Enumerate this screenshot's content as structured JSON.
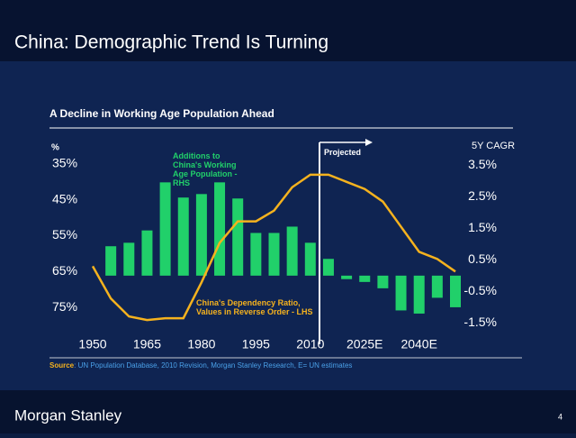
{
  "header": {
    "title": "China: Demographic Trend Is Turning"
  },
  "chart_data": {
    "type": "bar-line",
    "title": "A Decline in Working Age Population Ahead",
    "ylabel": "%",
    "y2label": "5Y CAGR",
    "categories": [
      "1950",
      null,
      null,
      "1965",
      null,
      null,
      "1980",
      null,
      null,
      "1995",
      null,
      null,
      "2010",
      null,
      null,
      "2025E",
      null,
      null,
      "2040E",
      null,
      null
    ],
    "series": [
      {
        "name": "Additions to China's Working Age Population - RHS",
        "type": "bar",
        "axis": "y2",
        "color": "#21d06a",
        "values": [
          null,
          0.93,
          1.04,
          1.43,
          2.95,
          2.47,
          2.58,
          2.95,
          2.44,
          1.35,
          1.35,
          1.55,
          1.04,
          0.53,
          -0.11,
          -0.2,
          -0.4,
          -1.1,
          -1.2,
          -0.7,
          -1.0
        ]
      },
      {
        "name": "China's Dependency Ratio, Values in Reverse Order - LHS",
        "type": "line",
        "axis": "y",
        "color": "#f5b21e",
        "values": [
          63.5,
          72.5,
          77.5,
          78.5,
          78,
          78,
          68,
          57,
          51,
          51,
          48,
          41.5,
          38,
          38,
          40,
          42,
          45.5,
          52.5,
          59.5,
          61.5,
          65
        ]
      }
    ],
    "ylim": [
      82,
      30
    ],
    "yticks": [
      {
        "value": 35,
        "label": "35%"
      },
      {
        "value": 45,
        "label": "45%"
      },
      {
        "value": 55,
        "label": "55%"
      },
      {
        "value": 65,
        "label": "65%"
      },
      {
        "value": 75,
        "label": "75%"
      }
    ],
    "y2lim": [
      -1.8,
      4.1
    ],
    "y2ticks": [
      {
        "value": 3.5,
        "label": "3.5%"
      },
      {
        "value": 2.5,
        "label": "2.5%"
      },
      {
        "value": 1.5,
        "label": "1.5%"
      },
      {
        "value": 0.5,
        "label": "0.5%"
      },
      {
        "value": -0.5,
        "label": "-0.5%"
      },
      {
        "value": -1.5,
        "label": "-1.5%"
      }
    ],
    "annotations": [
      {
        "lines": [
          "Additions to",
          "China's Working",
          "Age Population -",
          "RHS"
        ],
        "color": "#21d06a"
      },
      {
        "lines": [
          "China's Dependency Ratio,",
          "Values in Reverse Order - LHS"
        ],
        "color": "#f5b21e"
      },
      {
        "lines": [
          "Projected"
        ],
        "color": "#ffffff"
      }
    ],
    "source_label": "Source",
    "source_text": ": UN Population Database, 2010 Revision, Morgan Stanley Research, E= UN estimates"
  },
  "footer": {
    "brand": "Morgan Stanley",
    "page": "4"
  }
}
